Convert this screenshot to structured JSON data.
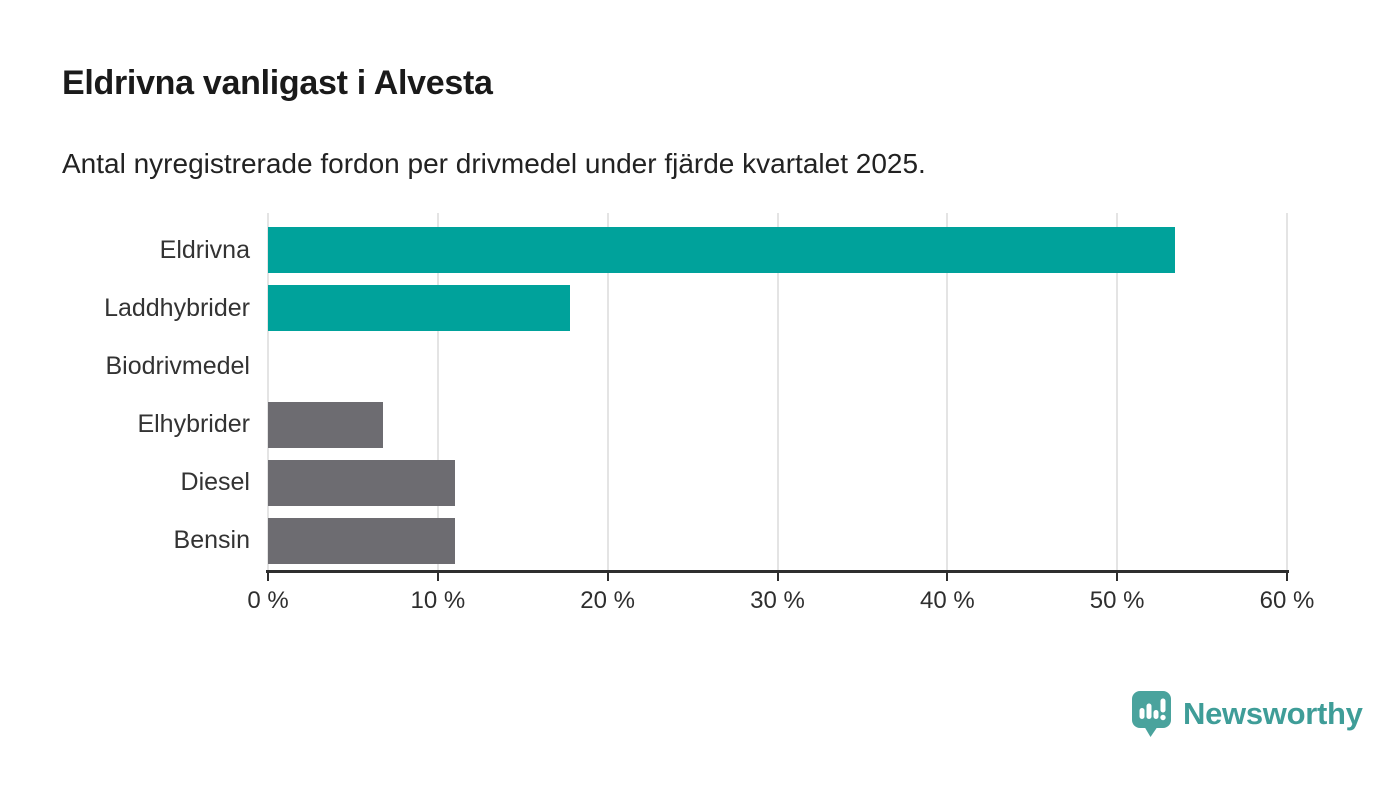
{
  "header": {
    "title": "Eldrivna vanligast i Alvesta",
    "subtitle": "Antal nyregistrerade fordon per drivmedel under fjärde kvartalet 2025."
  },
  "chart_data": {
    "type": "bar",
    "orientation": "horizontal",
    "title": "Eldrivna vanligast i Alvesta",
    "subtitle": "Antal nyregistrerade fordon per drivmedel under fjärde kvartalet 2025.",
    "categories": [
      "Eldrivna",
      "Laddhybrider",
      "Biodrivmedel",
      "Elhybrider",
      "Diesel",
      "Bensin"
    ],
    "values": [
      53.4,
      17.8,
      0,
      6.8,
      11,
      11
    ],
    "unit": "%",
    "xlabel": "",
    "ylabel": "",
    "xlim": [
      0,
      60
    ],
    "x_ticks": [
      0,
      10,
      20,
      30,
      40,
      50,
      60
    ],
    "x_tick_labels": [
      "0 %",
      "10 %",
      "20 %",
      "30 %",
      "40 %",
      "50 %",
      "60 %"
    ],
    "grid": "vertical-gridlines-on",
    "legend": "none",
    "bar_colors": [
      "#00a29b",
      "#00a29b",
      "#00a29b",
      "#6d6c71",
      "#6d6c71",
      "#6d6c71"
    ]
  },
  "colors": {
    "accent_teal": "#00a29b",
    "neutral_gray": "#6d6c71",
    "gridline": "#e4e4e4",
    "axis": "#2e2e2e",
    "title_text": "#1a1a1a",
    "logo_text_teal": "#3f9d98",
    "logo_icon_teal": "#4aa39d"
  },
  "footer": {
    "brand": "Newsworthy"
  }
}
